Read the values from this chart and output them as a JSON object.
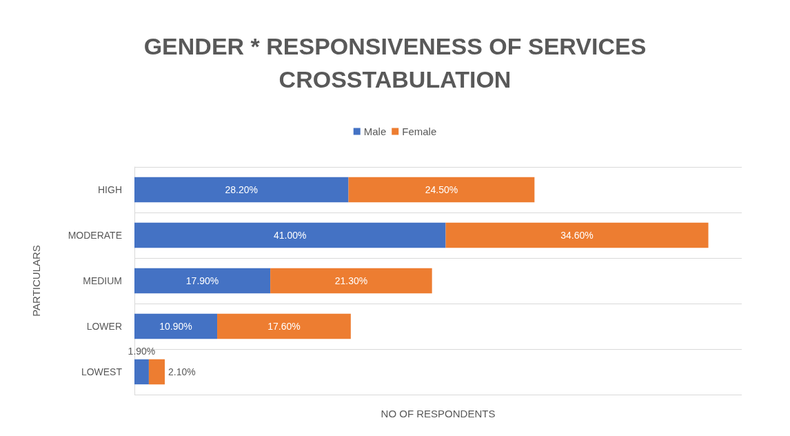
{
  "chart_data": {
    "type": "bar",
    "orientation": "horizontal",
    "stacked": true,
    "title": "GENDER * RESPONSIVENESS OF SERVICES\nCROSSTABULATION",
    "xlabel": "NO OF RESPONDENTS",
    "ylabel": "PARTICULARS",
    "categories": [
      "HIGH",
      "MODERATE",
      "MEDIUM",
      "LOWER",
      "LOWEST"
    ],
    "series": [
      {
        "name": "Male",
        "color": "#4472c4",
        "values": [
          28.2,
          41.0,
          17.9,
          10.9,
          1.9
        ],
        "value_labels": [
          "28.20%",
          "41.00%",
          "17.90%",
          "10.90%",
          "1.90%"
        ]
      },
      {
        "name": "Female",
        "color": "#ed7d31",
        "values": [
          24.5,
          34.6,
          21.3,
          17.6,
          2.1
        ],
        "value_labels": [
          "24.50%",
          "34.60%",
          "21.30%",
          "17.60%",
          "2.10%"
        ]
      }
    ],
    "legend": "top",
    "grid": "y"
  }
}
